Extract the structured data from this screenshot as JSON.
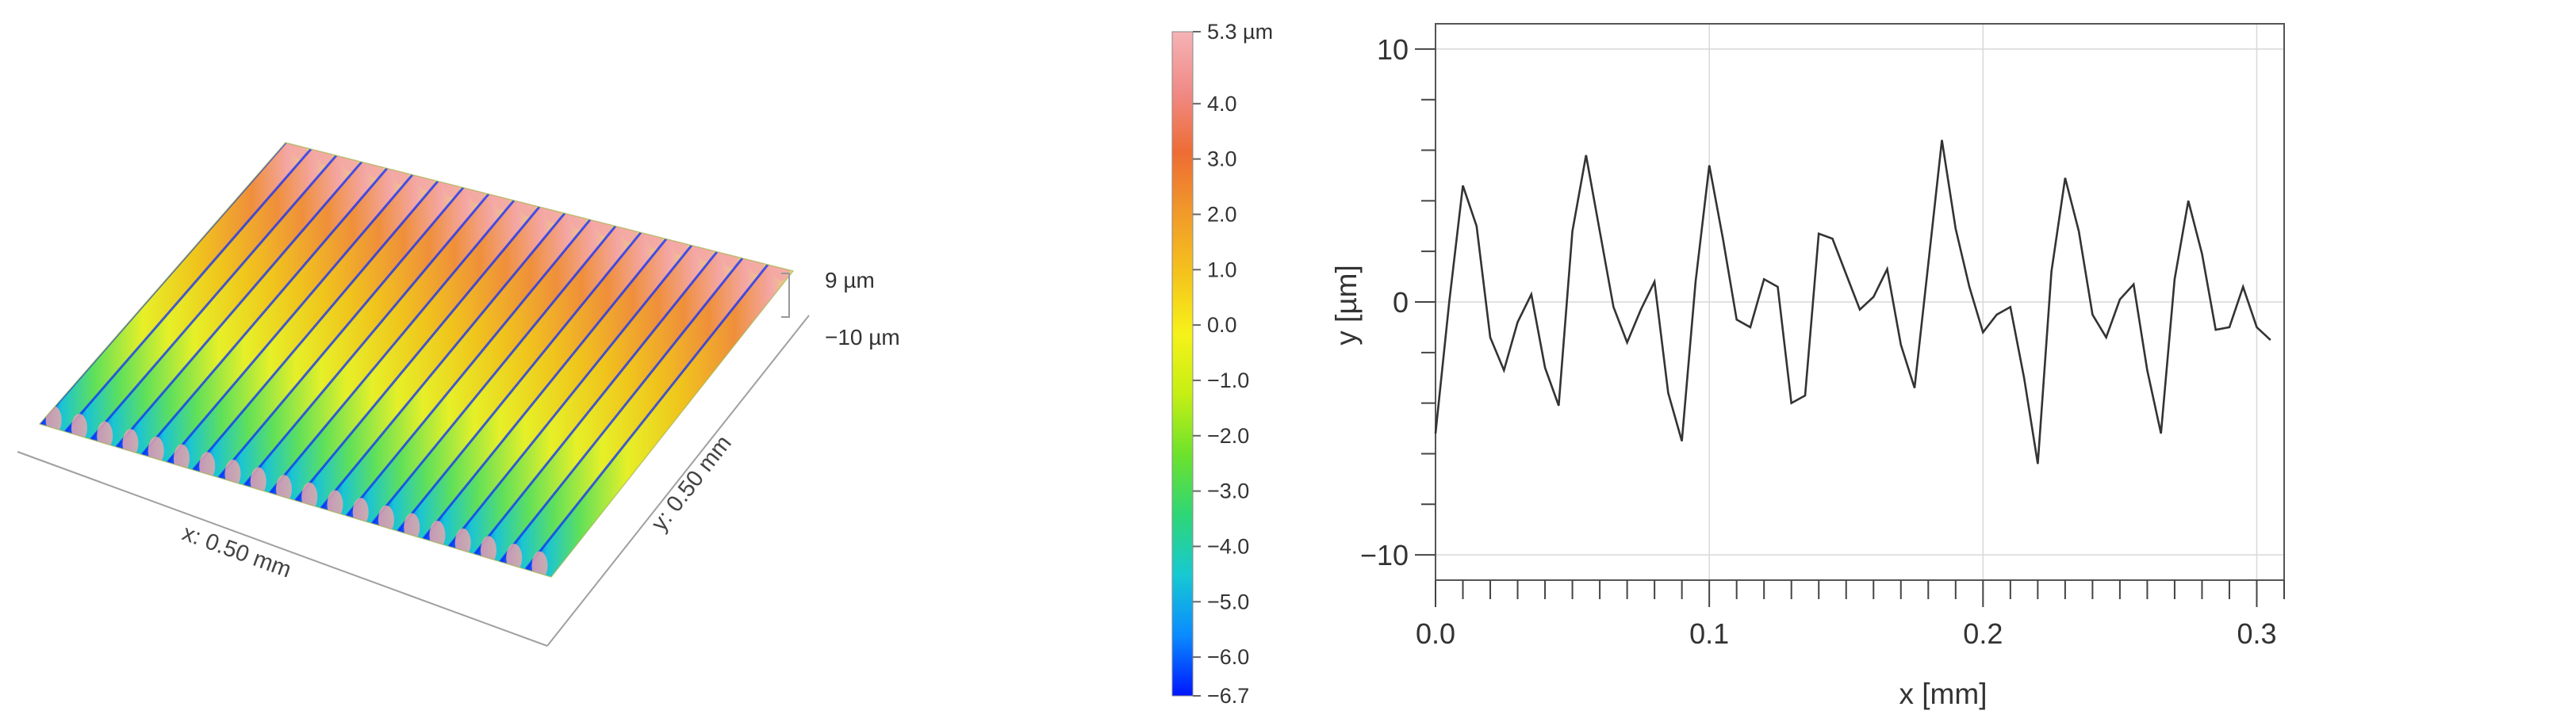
{
  "surface_plot": {
    "x_axis_label": "x: 0.50 mm",
    "y_axis_label": "y: 0.50 mm",
    "z_scale_top": "9 µm",
    "z_scale_bottom": "−10 µm",
    "stripe_count": 20,
    "colors": [
      "#0a2cff",
      "#19c4d6",
      "#5fe05a",
      "#e6f028",
      "#f0c41c",
      "#ef8f3a",
      "#f4a7a7"
    ]
  },
  "colorbar": {
    "ticks": [
      "5.3 µm",
      "4.0",
      "3.0",
      "2.0",
      "1.0",
      "0.0",
      "−1.0",
      "−2.0",
      "−3.0",
      "−4.0",
      "−5.0",
      "−6.0",
      "−6.7"
    ],
    "tick_values": [
      5.3,
      4.0,
      3.0,
      2.0,
      1.0,
      0.0,
      -1.0,
      -2.0,
      -3.0,
      -4.0,
      -5.0,
      -6.0,
      -6.7
    ],
    "range": [
      -6.7,
      5.3
    ],
    "colors": [
      "#0016ff",
      "#0a8bff",
      "#17c9d2",
      "#2fd676",
      "#6ee22c",
      "#c6ef14",
      "#f6f21a",
      "#f5c31c",
      "#f19a2a",
      "#ee6c34",
      "#f08a86",
      "#f5b3b6"
    ]
  },
  "chart_data": {
    "type": "line",
    "xlabel": "x [mm]",
    "ylabel": "y [µm]",
    "xlim": [
      0,
      0.31
    ],
    "ylim": [
      -11,
      11
    ],
    "x_ticks": [
      0.0,
      0.1,
      0.2,
      0.3
    ],
    "x_tick_labels": [
      "0.0",
      "0.1",
      "0.2",
      "0.3"
    ],
    "y_ticks": [
      10,
      0,
      -10
    ],
    "y_tick_labels": [
      "10",
      "0",
      "−10"
    ],
    "grid": true,
    "line_color": "#333333",
    "x": [
      0.0,
      0.005,
      0.01,
      0.015,
      0.02,
      0.025,
      0.03,
      0.035,
      0.04,
      0.045,
      0.05,
      0.055,
      0.06,
      0.065,
      0.07,
      0.075,
      0.08,
      0.085,
      0.09,
      0.095,
      0.1,
      0.105,
      0.11,
      0.115,
      0.12,
      0.125,
      0.13,
      0.135,
      0.14,
      0.145,
      0.15,
      0.155,
      0.16,
      0.165,
      0.17,
      0.175,
      0.18,
      0.185,
      0.19,
      0.195,
      0.2,
      0.205,
      0.21,
      0.215,
      0.22,
      0.225,
      0.23,
      0.235,
      0.24,
      0.245,
      0.25,
      0.255,
      0.26,
      0.265,
      0.27,
      0.275,
      0.28,
      0.285,
      0.29,
      0.295,
      0.3,
      0.305
    ],
    "y": [
      -5.2,
      0.0,
      4.6,
      3.0,
      -1.4,
      -2.7,
      -0.8,
      0.3,
      -2.6,
      -4.1,
      2.8,
      5.8,
      2.8,
      -0.2,
      -1.6,
      -0.3,
      0.8,
      -3.6,
      -5.5,
      0.8,
      5.4,
      2.5,
      -0.7,
      -1.0,
      0.9,
      0.6,
      -4.0,
      -3.7,
      2.7,
      2.5,
      1.1,
      -0.3,
      0.2,
      1.3,
      -1.7,
      -3.4,
      1.5,
      6.4,
      2.9,
      0.6,
      -1.2,
      -0.5,
      -0.2,
      -3.0,
      -6.4,
      1.2,
      4.9,
      2.8,
      -0.5,
      -1.4,
      0.1,
      0.7,
      -2.7,
      -5.2,
      0.9,
      4.0,
      1.9,
      -1.1,
      -1.0,
      0.6,
      -1.0,
      -1.5
    ]
  }
}
